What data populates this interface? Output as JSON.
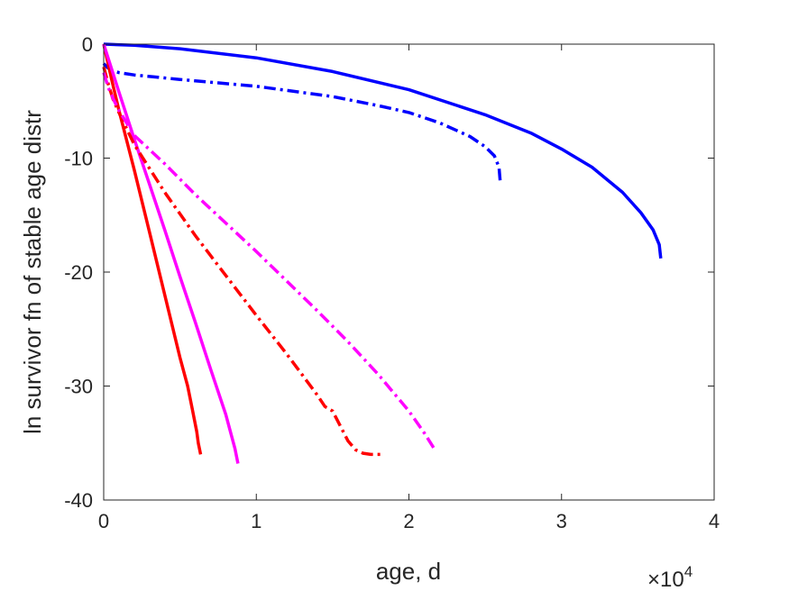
{
  "chart_data": {
    "type": "line",
    "title": "",
    "xlabel": "age, d",
    "ylabel": "ln survivor fn of stable age distr",
    "x_multiplier_label": {
      "base": "×10",
      "exponent": "4"
    },
    "xlim": [
      0,
      40000
    ],
    "ylim": [
      -40,
      0
    ],
    "x_ticks": [
      0,
      10000,
      20000,
      30000,
      40000
    ],
    "x_tick_labels": [
      "0",
      "1",
      "2",
      "3",
      "4"
    ],
    "y_ticks": [
      0,
      -10,
      -20,
      -30,
      -40
    ],
    "y_tick_labels": [
      "0",
      "-10",
      "-20",
      "-30",
      "-40"
    ],
    "grid": false,
    "series": [
      {
        "color": "#0000ff",
        "style": "solid",
        "points": [
          [
            0,
            0
          ],
          [
            2000,
            -0.1
          ],
          [
            5000,
            -0.4
          ],
          [
            10000,
            -1.2
          ],
          [
            15000,
            -2.4
          ],
          [
            20000,
            -4.0
          ],
          [
            25000,
            -6.2
          ],
          [
            28000,
            -7.8
          ],
          [
            30000,
            -9.2
          ],
          [
            32000,
            -10.8
          ],
          [
            34000,
            -13.0
          ],
          [
            35200,
            -14.8
          ],
          [
            36000,
            -16.3
          ],
          [
            36400,
            -17.6
          ],
          [
            36500,
            -18.8
          ]
        ]
      },
      {
        "color": "#0000ff",
        "style": "dashdot",
        "points": [
          [
            0,
            -1.7
          ],
          [
            200,
            -2.0
          ],
          [
            500,
            -2.3
          ],
          [
            1000,
            -2.5
          ],
          [
            2000,
            -2.7
          ],
          [
            5000,
            -3.1
          ],
          [
            10000,
            -3.7
          ],
          [
            15000,
            -4.6
          ],
          [
            18000,
            -5.4
          ],
          [
            20000,
            -6.0
          ],
          [
            22000,
            -6.9
          ],
          [
            24000,
            -8.1
          ],
          [
            25000,
            -9.0
          ],
          [
            25600,
            -9.8
          ],
          [
            25900,
            -10.8
          ],
          [
            26000,
            -12.3
          ]
        ]
      },
      {
        "color": "#ff0000",
        "style": "solid",
        "points": [
          [
            0,
            0
          ],
          [
            500,
            -3.0
          ],
          [
            1000,
            -5.8
          ],
          [
            2000,
            -11.0
          ],
          [
            3000,
            -16.5
          ],
          [
            4000,
            -22.0
          ],
          [
            5000,
            -27.5
          ],
          [
            5500,
            -30.0
          ],
          [
            5800,
            -32.0
          ],
          [
            6100,
            -34.0
          ],
          [
            6200,
            -35.0
          ],
          [
            6350,
            -36.0
          ]
        ]
      },
      {
        "color": "#ff00ff",
        "style": "solid",
        "points": [
          [
            0,
            0
          ],
          [
            500,
            -2.1
          ],
          [
            1000,
            -4.2
          ],
          [
            2000,
            -8.3
          ],
          [
            3000,
            -12.3
          ],
          [
            4000,
            -16.3
          ],
          [
            5000,
            -20.4
          ],
          [
            6000,
            -24.4
          ],
          [
            7000,
            -28.5
          ],
          [
            8000,
            -32.5
          ],
          [
            8600,
            -35.5
          ],
          [
            8800,
            -36.8
          ]
        ]
      },
      {
        "color": "#ff0000",
        "style": "dashdot",
        "points": [
          [
            0,
            -2.0
          ],
          [
            300,
            -3.5
          ],
          [
            600,
            -4.8
          ],
          [
            1000,
            -6.0
          ],
          [
            2000,
            -8.8
          ],
          [
            4000,
            -13.0
          ],
          [
            6000,
            -16.8
          ],
          [
            8000,
            -20.3
          ],
          [
            10000,
            -23.8
          ],
          [
            12000,
            -27.2
          ],
          [
            13000,
            -29.0
          ],
          [
            14000,
            -30.8
          ],
          [
            14500,
            -31.8
          ],
          [
            15000,
            -32.2
          ],
          [
            16000,
            -34.8
          ],
          [
            16500,
            -35.6
          ],
          [
            17000,
            -35.9
          ],
          [
            17500,
            -36.0
          ],
          [
            18200,
            -36.0
          ]
        ]
      },
      {
        "color": "#ff00ff",
        "style": "dashdot",
        "points": [
          [
            0,
            -2.5
          ],
          [
            300,
            -3.8
          ],
          [
            700,
            -5.0
          ],
          [
            1000,
            -5.8
          ],
          [
            2000,
            -8.0
          ],
          [
            4000,
            -10.5
          ],
          [
            6000,
            -13.2
          ],
          [
            8000,
            -15.7
          ],
          [
            10000,
            -18.2
          ],
          [
            12000,
            -20.8
          ],
          [
            14000,
            -23.4
          ],
          [
            16000,
            -26.1
          ],
          [
            18000,
            -29.0
          ],
          [
            19000,
            -30.6
          ],
          [
            20000,
            -32.2
          ],
          [
            21000,
            -34.1
          ],
          [
            21700,
            -35.6
          ]
        ]
      }
    ]
  }
}
